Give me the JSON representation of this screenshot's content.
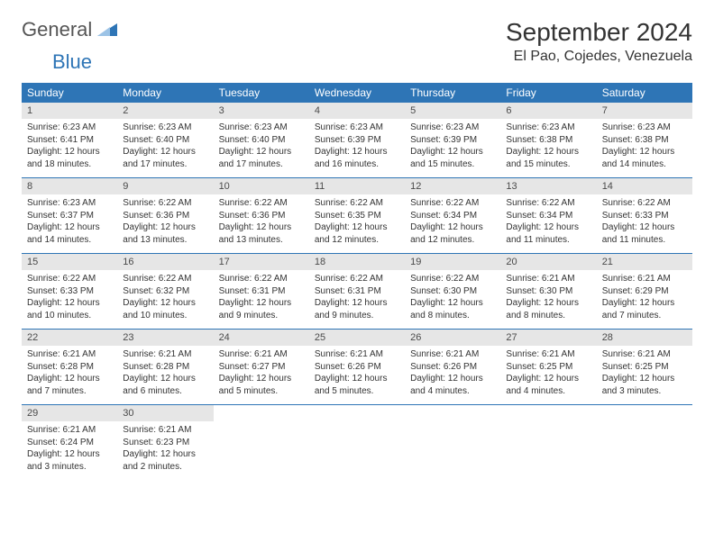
{
  "logo": {
    "text1": "General",
    "text2": "Blue"
  },
  "title": {
    "month": "September 2024",
    "location": "El Pao, Cojedes, Venezuela"
  },
  "colors": {
    "headerBlue": "#2e75b6",
    "dateBarGray": "#e6e6e6",
    "textDark": "#333333",
    "logoGray": "#555555"
  },
  "dayNames": [
    "Sunday",
    "Monday",
    "Tuesday",
    "Wednesday",
    "Thursday",
    "Friday",
    "Saturday"
  ],
  "weeks": [
    [
      {
        "d": "1",
        "sr": "Sunrise: 6:23 AM",
        "ss": "Sunset: 6:41 PM",
        "dl": "Daylight: 12 hours and 18 minutes."
      },
      {
        "d": "2",
        "sr": "Sunrise: 6:23 AM",
        "ss": "Sunset: 6:40 PM",
        "dl": "Daylight: 12 hours and 17 minutes."
      },
      {
        "d": "3",
        "sr": "Sunrise: 6:23 AM",
        "ss": "Sunset: 6:40 PM",
        "dl": "Daylight: 12 hours and 17 minutes."
      },
      {
        "d": "4",
        "sr": "Sunrise: 6:23 AM",
        "ss": "Sunset: 6:39 PM",
        "dl": "Daylight: 12 hours and 16 minutes."
      },
      {
        "d": "5",
        "sr": "Sunrise: 6:23 AM",
        "ss": "Sunset: 6:39 PM",
        "dl": "Daylight: 12 hours and 15 minutes."
      },
      {
        "d": "6",
        "sr": "Sunrise: 6:23 AM",
        "ss": "Sunset: 6:38 PM",
        "dl": "Daylight: 12 hours and 15 minutes."
      },
      {
        "d": "7",
        "sr": "Sunrise: 6:23 AM",
        "ss": "Sunset: 6:38 PM",
        "dl": "Daylight: 12 hours and 14 minutes."
      }
    ],
    [
      {
        "d": "8",
        "sr": "Sunrise: 6:23 AM",
        "ss": "Sunset: 6:37 PM",
        "dl": "Daylight: 12 hours and 14 minutes."
      },
      {
        "d": "9",
        "sr": "Sunrise: 6:22 AM",
        "ss": "Sunset: 6:36 PM",
        "dl": "Daylight: 12 hours and 13 minutes."
      },
      {
        "d": "10",
        "sr": "Sunrise: 6:22 AM",
        "ss": "Sunset: 6:36 PM",
        "dl": "Daylight: 12 hours and 13 minutes."
      },
      {
        "d": "11",
        "sr": "Sunrise: 6:22 AM",
        "ss": "Sunset: 6:35 PM",
        "dl": "Daylight: 12 hours and 12 minutes."
      },
      {
        "d": "12",
        "sr": "Sunrise: 6:22 AM",
        "ss": "Sunset: 6:34 PM",
        "dl": "Daylight: 12 hours and 12 minutes."
      },
      {
        "d": "13",
        "sr": "Sunrise: 6:22 AM",
        "ss": "Sunset: 6:34 PM",
        "dl": "Daylight: 12 hours and 11 minutes."
      },
      {
        "d": "14",
        "sr": "Sunrise: 6:22 AM",
        "ss": "Sunset: 6:33 PM",
        "dl": "Daylight: 12 hours and 11 minutes."
      }
    ],
    [
      {
        "d": "15",
        "sr": "Sunrise: 6:22 AM",
        "ss": "Sunset: 6:33 PM",
        "dl": "Daylight: 12 hours and 10 minutes."
      },
      {
        "d": "16",
        "sr": "Sunrise: 6:22 AM",
        "ss": "Sunset: 6:32 PM",
        "dl": "Daylight: 12 hours and 10 minutes."
      },
      {
        "d": "17",
        "sr": "Sunrise: 6:22 AM",
        "ss": "Sunset: 6:31 PM",
        "dl": "Daylight: 12 hours and 9 minutes."
      },
      {
        "d": "18",
        "sr": "Sunrise: 6:22 AM",
        "ss": "Sunset: 6:31 PM",
        "dl": "Daylight: 12 hours and 9 minutes."
      },
      {
        "d": "19",
        "sr": "Sunrise: 6:22 AM",
        "ss": "Sunset: 6:30 PM",
        "dl": "Daylight: 12 hours and 8 minutes."
      },
      {
        "d": "20",
        "sr": "Sunrise: 6:21 AM",
        "ss": "Sunset: 6:30 PM",
        "dl": "Daylight: 12 hours and 8 minutes."
      },
      {
        "d": "21",
        "sr": "Sunrise: 6:21 AM",
        "ss": "Sunset: 6:29 PM",
        "dl": "Daylight: 12 hours and 7 minutes."
      }
    ],
    [
      {
        "d": "22",
        "sr": "Sunrise: 6:21 AM",
        "ss": "Sunset: 6:28 PM",
        "dl": "Daylight: 12 hours and 7 minutes."
      },
      {
        "d": "23",
        "sr": "Sunrise: 6:21 AM",
        "ss": "Sunset: 6:28 PM",
        "dl": "Daylight: 12 hours and 6 minutes."
      },
      {
        "d": "24",
        "sr": "Sunrise: 6:21 AM",
        "ss": "Sunset: 6:27 PM",
        "dl": "Daylight: 12 hours and 5 minutes."
      },
      {
        "d": "25",
        "sr": "Sunrise: 6:21 AM",
        "ss": "Sunset: 6:26 PM",
        "dl": "Daylight: 12 hours and 5 minutes."
      },
      {
        "d": "26",
        "sr": "Sunrise: 6:21 AM",
        "ss": "Sunset: 6:26 PM",
        "dl": "Daylight: 12 hours and 4 minutes."
      },
      {
        "d": "27",
        "sr": "Sunrise: 6:21 AM",
        "ss": "Sunset: 6:25 PM",
        "dl": "Daylight: 12 hours and 4 minutes."
      },
      {
        "d": "28",
        "sr": "Sunrise: 6:21 AM",
        "ss": "Sunset: 6:25 PM",
        "dl": "Daylight: 12 hours and 3 minutes."
      }
    ],
    [
      {
        "d": "29",
        "sr": "Sunrise: 6:21 AM",
        "ss": "Sunset: 6:24 PM",
        "dl": "Daylight: 12 hours and 3 minutes."
      },
      {
        "d": "30",
        "sr": "Sunrise: 6:21 AM",
        "ss": "Sunset: 6:23 PM",
        "dl": "Daylight: 12 hours and 2 minutes."
      },
      null,
      null,
      null,
      null,
      null
    ]
  ]
}
